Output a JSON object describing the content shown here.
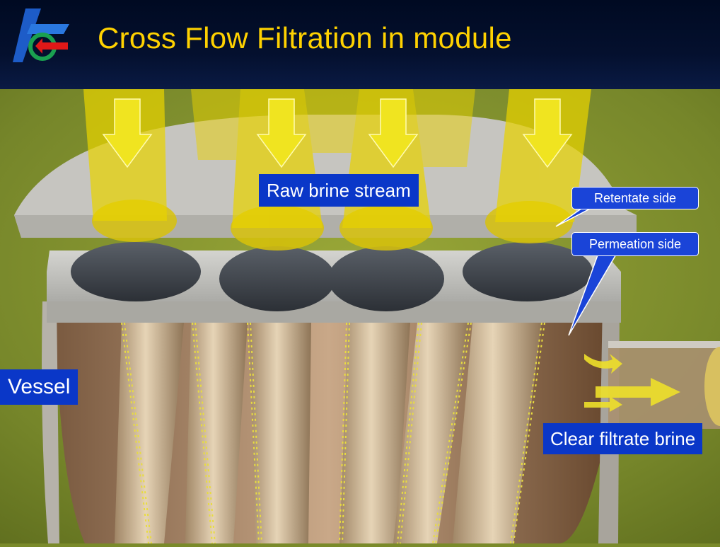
{
  "slide": {
    "title": "Cross Flow Filtration in module",
    "labels": {
      "raw_brine": "Raw brine stream",
      "vessel": "Vessel",
      "clear_filtrate": "Clear filtrate brine"
    },
    "callouts": {
      "retentate": "Retentate side",
      "permeation": "Permeation side"
    }
  },
  "colors": {
    "header_bg": "#000a22",
    "title": "#ffd200",
    "label_bg": "#0a37c8",
    "callout_bg": "#1a44d8",
    "flow_arrow": "#e8e000",
    "background_green": "#7a8a2a"
  },
  "icons": {
    "logo": "company-logo",
    "flow_arrows": "down-arrow-icon",
    "filtrate_arrows": "right-arrow-icon"
  }
}
